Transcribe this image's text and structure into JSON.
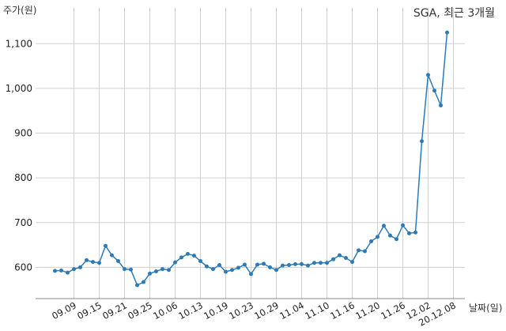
{
  "chart_data": {
    "type": "line",
    "title": "SGA, 최근 3개월",
    "xlabel": "날짜(일)",
    "ylabel": "주가(원)",
    "ylim": [
      530,
      1180
    ],
    "yticks": [
      "600",
      "700",
      "800",
      "900",
      "1,000",
      "1,100"
    ],
    "xtick_labels": [
      "09.09",
      "09.15",
      "09.21",
      "09.25",
      "10.06",
      "10.13",
      "10.19",
      "10.23",
      "10.29",
      "11.04",
      "11.10",
      "11.16",
      "11.20",
      "11.26",
      "12.02",
      "20.12.08"
    ],
    "xtick_index": [
      3,
      7,
      11,
      15,
      19,
      23,
      27,
      31,
      35,
      39,
      43,
      47,
      51,
      55,
      59,
      63
    ],
    "grid": true,
    "series_color": "#2b7bb9",
    "series": [
      {
        "values": [
          592,
          593,
          588,
          596,
          600,
          616,
          612,
          610,
          648,
          627,
          614,
          596,
          595,
          560,
          567,
          586,
          591,
          596,
          594,
          611,
          622,
          630,
          626,
          614,
          602,
          596,
          605,
          590,
          594,
          599,
          606,
          585,
          606,
          608,
          600,
          594,
          604,
          605,
          607,
          607,
          604,
          610,
          610,
          610,
          618,
          627,
          621,
          612,
          638,
          636,
          658,
          668,
          693,
          671,
          663,
          694,
          676,
          678,
          882,
          1030,
          995,
          962,
          1125
        ]
      }
    ]
  }
}
